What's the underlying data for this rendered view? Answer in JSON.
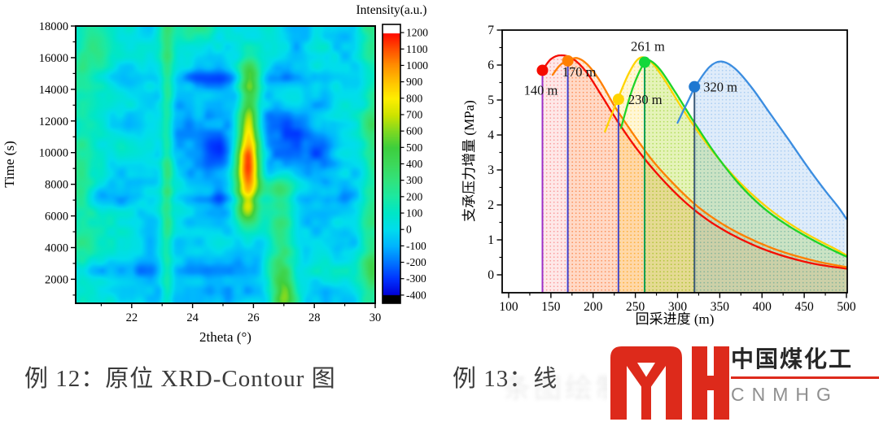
{
  "captions": {
    "left": "例 12：原位 XRD-Contour 图",
    "right_visible": "例 13：线",
    "right_obscured": "条图绘制示例效果对比"
  },
  "logo": {
    "brand_cn": "中国煤化工",
    "brand_en": "CNMHG",
    "red": "#dd2a1b",
    "gray": "#8f8f8f"
  },
  "styles": {
    "axis_color": "#000000",
    "caption_color": "#3b3b3b"
  },
  "chart_data": [
    {
      "type": "heatmap",
      "colorbar_title": "Intensity(a.u.)",
      "xlabel": "2theta (°)",
      "ylabel": "Time (s)",
      "x_range": [
        20.16,
        30
      ],
      "y_range": [
        480,
        18000
      ],
      "z_range": [
        -400,
        1200
      ],
      "x_ticks": [
        22,
        24,
        26,
        28,
        30
      ],
      "x_minor": [
        21,
        23,
        25,
        27,
        29
      ],
      "y_ticks": [
        2000,
        4000,
        6000,
        8000,
        10000,
        12000,
        14000,
        16000,
        18000
      ],
      "colorbar_ticks": [
        1200,
        1100,
        1000,
        900,
        800,
        700,
        600,
        500,
        400,
        300,
        200,
        100,
        0,
        -100,
        -200,
        -300,
        -400
      ],
      "colormap": [
        [
          -400,
          "#0000d8"
        ],
        [
          -300,
          "#0033ff"
        ],
        [
          -200,
          "#0075ff"
        ],
        [
          -100,
          "#00b4ff"
        ],
        [
          0,
          "#00ddee"
        ],
        [
          100,
          "#00e6c8"
        ],
        [
          200,
          "#1ce9a2"
        ],
        [
          300,
          "#32e37d"
        ],
        [
          400,
          "#3dd95b"
        ],
        [
          500,
          "#3ecf3e"
        ],
        [
          600,
          "#7fd922"
        ],
        [
          700,
          "#cfe400"
        ],
        [
          800,
          "#ffef00"
        ],
        [
          900,
          "#ffc300"
        ],
        [
          1000,
          "#ff9000"
        ],
        [
          1100,
          "#ff4f00"
        ],
        [
          1200,
          "#ff0800"
        ]
      ],
      "noise": {
        "seed": 7,
        "cell1": 30,
        "amp1": 100,
        "cell2": 12,
        "amp2": 55,
        "base": 40
      },
      "features": [
        {
          "x": 25.8,
          "y": 9000,
          "sx": 0.3,
          "sy": 1600,
          "a": 1250
        },
        {
          "x": 25.85,
          "y": 12200,
          "sx": 0.24,
          "sy": 1600,
          "a": 650
        },
        {
          "x": 25.9,
          "y": 14800,
          "sx": 0.26,
          "sy": 900,
          "a": 380
        },
        {
          "x": 25.8,
          "y": 6500,
          "sx": 0.28,
          "sy": 800,
          "a": 420
        },
        {
          "x": 23.15,
          "y": 9000,
          "sx": 0.14,
          "sy": 12000,
          "a": 270
        },
        {
          "x": 26.9,
          "y": 3600,
          "sx": 0.32,
          "sy": 2800,
          "a": 380
        },
        {
          "x": 27.0,
          "y": 900,
          "sx": 0.3,
          "sy": 900,
          "a": 420
        },
        {
          "x": 26.85,
          "y": 7600,
          "sx": 0.45,
          "sy": 700,
          "a": 330
        },
        {
          "x": 29.95,
          "y": 11000,
          "sx": 0.28,
          "sy": 6000,
          "a": 300
        },
        {
          "x": 29.85,
          "y": 2500,
          "sx": 0.3,
          "sy": 1500,
          "a": 260
        },
        {
          "x": 20.35,
          "y": 9000,
          "sx": 0.3,
          "sy": 9000,
          "a": 150
        },
        {
          "x": 20.8,
          "y": 16500,
          "sx": 0.4,
          "sy": 1200,
          "a": 170
        },
        {
          "x": 24.2,
          "y": 17800,
          "sx": 0.8,
          "sy": 700,
          "a": 160
        },
        {
          "x": 26.3,
          "y": 9500,
          "sx": 2.6,
          "sy": 5200,
          "a": -140
        },
        {
          "x": 24.8,
          "y": 10200,
          "sx": 0.8,
          "sy": 1400,
          "a": -130
        },
        {
          "x": 27.4,
          "y": 10500,
          "sx": 0.9,
          "sy": 1600,
          "a": -120
        },
        {
          "x": 25.3,
          "y": 2700,
          "sx": 0.9,
          "sy": 900,
          "a": -140
        },
        {
          "x": 25.2,
          "y": 14700,
          "sx": 2.2,
          "sy": 320,
          "a": -130
        },
        {
          "x": 25.5,
          "y": 7100,
          "sx": 2.5,
          "sy": 280,
          "a": -140
        },
        {
          "x": 24.6,
          "y": 1000,
          "sx": 1.6,
          "sy": 600,
          "a": -110
        },
        {
          "x": 22.5,
          "y": 2600,
          "sx": 1.5,
          "sy": 350,
          "a": -90
        }
      ]
    },
    {
      "type": "line",
      "xlabel": "回采进度 (m)",
      "ylabel": "支承压力增量 (MPa)",
      "xlim": [
        100,
        500
      ],
      "ylim": [
        0,
        7
      ],
      "x_ticks": [
        100,
        150,
        200,
        250,
        300,
        350,
        400,
        450,
        500
      ],
      "y_ticks": [
        0,
        1,
        2,
        3,
        4,
        5,
        6,
        7
      ],
      "series": [
        {
          "name": "140 m",
          "color": "#f50c00",
          "fill": "rgba(250,80,80,0.13)",
          "dot_fill": "rgba(245,60,60,0.45)",
          "fill_from": 140,
          "marker": {
            "x": 140,
            "y": 5.85,
            "color": "#f50c00",
            "line_color": "#9b30c9",
            "label": "140 m",
            "dx": -2,
            "dy": 30,
            "anchor": "middle"
          },
          "points": [
            [
              140,
              5.85
            ],
            [
              150,
              6.17
            ],
            [
              162,
              6.28
            ],
            [
              176,
              6.18
            ],
            [
              192,
              5.8
            ],
            [
              212,
              5.05
            ],
            [
              232,
              4.28
            ],
            [
              255,
              3.5
            ],
            [
              280,
              2.78
            ],
            [
              308,
              2.1
            ],
            [
              335,
              1.58
            ],
            [
              362,
              1.18
            ],
            [
              390,
              0.85
            ],
            [
              420,
              0.58
            ],
            [
              450,
              0.38
            ],
            [
              475,
              0.26
            ],
            [
              500,
              0.18
            ]
          ]
        },
        {
          "name": "170 m",
          "color": "#ff7f00",
          "fill": "rgba(255,150,50,0.19)",
          "dot_fill": "rgba(255,140,40,0.45)",
          "fill_from": 170,
          "marker": {
            "x": 170,
            "y": 6.12,
            "color": "#ff7f00",
            "line_color": "#4040cc",
            "label": "170 m",
            "dx": 14,
            "dy": 19,
            "anchor": "middle"
          },
          "points": [
            [
              152,
              5.72
            ],
            [
              161,
              6.0
            ],
            [
              171,
              6.13
            ],
            [
              181,
              6.2
            ],
            [
              193,
              6.02
            ],
            [
              208,
              5.55
            ],
            [
              226,
              4.8
            ],
            [
              246,
              4.08
            ],
            [
              270,
              3.28
            ],
            [
              297,
              2.56
            ],
            [
              324,
              1.95
            ],
            [
              352,
              1.47
            ],
            [
              380,
              1.1
            ],
            [
              408,
              0.8
            ],
            [
              436,
              0.57
            ],
            [
              464,
              0.39
            ],
            [
              484,
              0.29
            ],
            [
              500,
              0.22
            ]
          ]
        },
        {
          "name": "230 m",
          "color": "#ffd400",
          "fill": "rgba(255,210,40,0.19)",
          "dot_fill": "rgba(255,205,30,0.45)",
          "fill_from": 230,
          "marker": {
            "x": 230,
            "y": 5.02,
            "color": "#ffd400",
            "line_color": "#4547c8",
            "label": "230 m",
            "dx": 12,
            "dy": 6,
            "anchor": "start"
          },
          "points": [
            [
              214,
              4.1
            ],
            [
              228,
              4.95
            ],
            [
              242,
              5.75
            ],
            [
              255,
              6.2
            ],
            [
              268,
              6.1
            ],
            [
              284,
              5.6
            ],
            [
              305,
              4.78
            ],
            [
              330,
              3.9
            ],
            [
              358,
              3.05
            ],
            [
              386,
              2.35
            ],
            [
              414,
              1.78
            ],
            [
              442,
              1.32
            ],
            [
              468,
              0.97
            ],
            [
              486,
              0.75
            ],
            [
              500,
              0.56
            ]
          ]
        },
        {
          "name": "261 m",
          "color": "#1fd428",
          "fill": "rgba(130,225,70,0.21)",
          "dot_fill": "rgba(110,215,60,0.45)",
          "fill_from": 261,
          "marker": {
            "x": 261,
            "y": 6.08,
            "color": "#12d83a",
            "line_color": "#0c9e53",
            "label": "261 m",
            "dx": 4,
            "dy": -14,
            "anchor": "middle"
          },
          "points": [
            [
              233,
              4.2
            ],
            [
              247,
              5.35
            ],
            [
              261,
              6.08
            ],
            [
              268,
              6.12
            ],
            [
              280,
              5.85
            ],
            [
              298,
              5.2
            ],
            [
              320,
              4.35
            ],
            [
              345,
              3.45
            ],
            [
              372,
              2.62
            ],
            [
              400,
              1.95
            ],
            [
              428,
              1.45
            ],
            [
              456,
              1.05
            ],
            [
              480,
              0.75
            ],
            [
              500,
              0.52
            ]
          ]
        },
        {
          "name": "320 m",
          "color": "#3b8de0",
          "fill": "rgba(120,175,235,0.24)",
          "dot_fill": "rgba(100,165,230,0.45)",
          "fill_from": 320,
          "marker": {
            "x": 320,
            "y": 5.38,
            "color": "#1f78d1",
            "line_color": "#3a5876",
            "label": "320 m",
            "dx": 11,
            "dy": 6,
            "anchor": "start"
          },
          "points": [
            [
              300,
              4.35
            ],
            [
              312,
              4.95
            ],
            [
              322,
              5.42
            ],
            [
              338,
              5.95
            ],
            [
              352,
              6.1
            ],
            [
              368,
              5.9
            ],
            [
              388,
              5.35
            ],
            [
              410,
              4.6
            ],
            [
              432,
              3.85
            ],
            [
              455,
              3.05
            ],
            [
              475,
              2.4
            ],
            [
              490,
              1.95
            ],
            [
              500,
              1.6
            ]
          ]
        }
      ]
    }
  ]
}
